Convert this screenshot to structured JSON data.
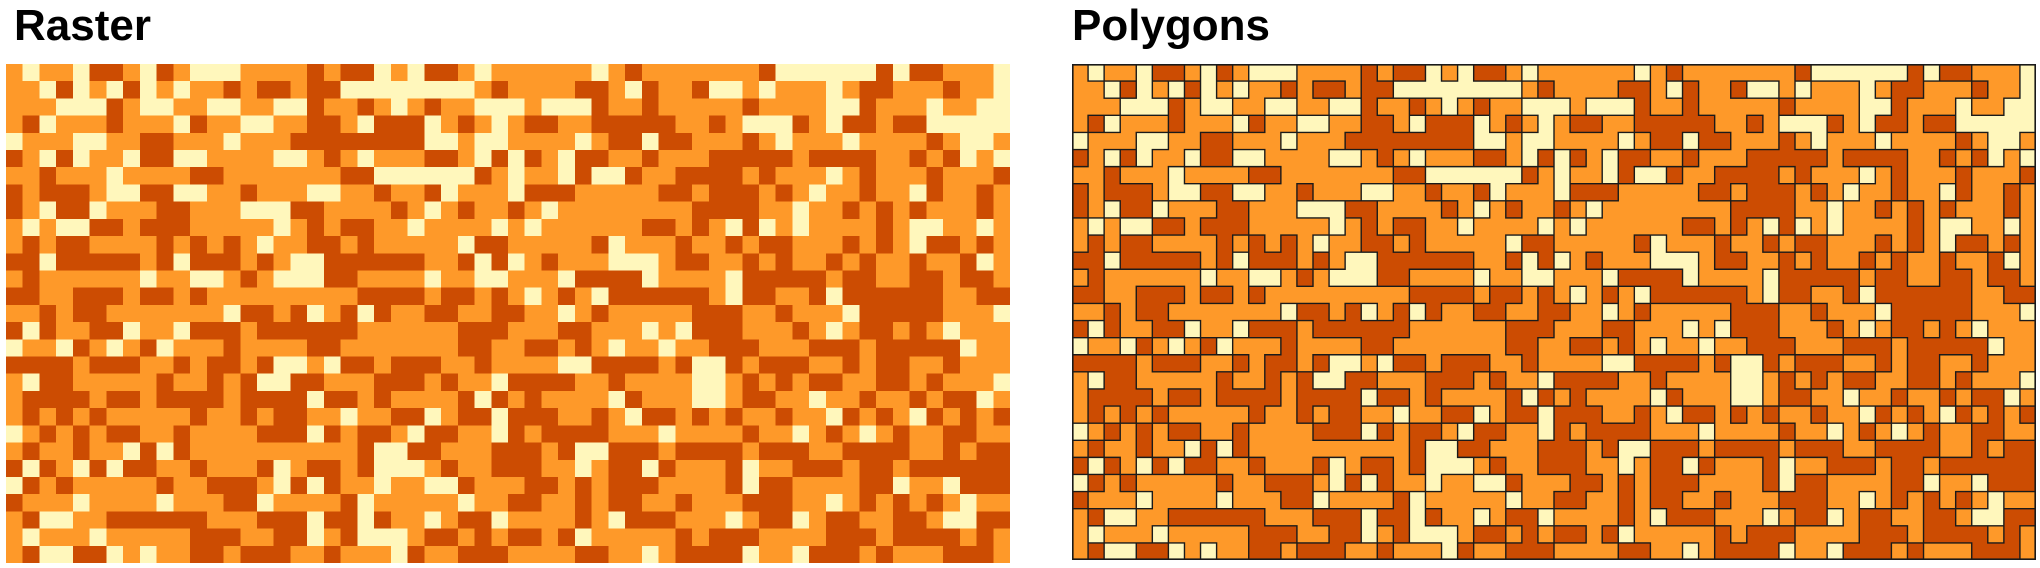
{
  "panels": {
    "left": {
      "title": "Raster"
    },
    "right": {
      "title": "Polygons"
    }
  },
  "palette": {
    "light": "#fff7bc",
    "medium": "#fe9929",
    "dark": "#cc4c02",
    "outline": "#1a1a1a"
  },
  "grid": {
    "rows": 29,
    "cols": 60,
    "cells": [
      "101102210210001111212201022101111110121111111200000020221110",
      "110201020101121221220000000012111122102112001011101221112110",
      "111000210011001100211210121100010002112111112111100211101100",
      "120111211102110011221022201210122112222211210002102212200000",
      "011100112211101112222222200100111101220221112101110111121001",
      "210201102200111100121011122102021022112111222221222211212010",
      "112111011112211111112200000021011020021122221211101211121112",
      "212221002200112111001121120111022211111221222121011211021121",
      "210220111221110002211112101211210111111112222110112121211121",
      "101002212221111101212211011110101111112212102010111121001101",
      "121221111212121011221211111022111112011121121221112121022121",
      "220222221202221210022222211202012111000122112121121211211201",
      "121111110110012100022111101100111022220111102222212211221221",
      "221122212212111111111222212212101210222222102211202222221122",
      "112122111111102212012021122112211012111112221121110222221110",
      "202112201102221222222111111222111221110102221112101221210111",
      "011021012011121111221111111221122121011011222111222122222011",
      "222212221121221200102212221121111002222120021222112122112111",
      "102211111211212002211122212110222211211110012121221122121110",
      "122221221222212222022121111202121111021110012211011211212201",
      "121212111112112122110112201220222112102212121121102121021212",
      "012121221121111222021221022110212222111011112110121012112211",
      "121121102021111111111200221112221200222122221222112222112122",
      "202102022112111201221200012112221101220211120112221221222222",
      "021211111211222102021101100211122121222111120221111220110222",
      "211101111011122011112011111011221121221121112221101212121011",
      "120011222222111222022021101220111121022211101220122112210022",
      "101110111112221122012000122121221201111121222111122212222121",
      "120022010112212221121110211222111122110122220110222121112221"
    ]
  }
}
